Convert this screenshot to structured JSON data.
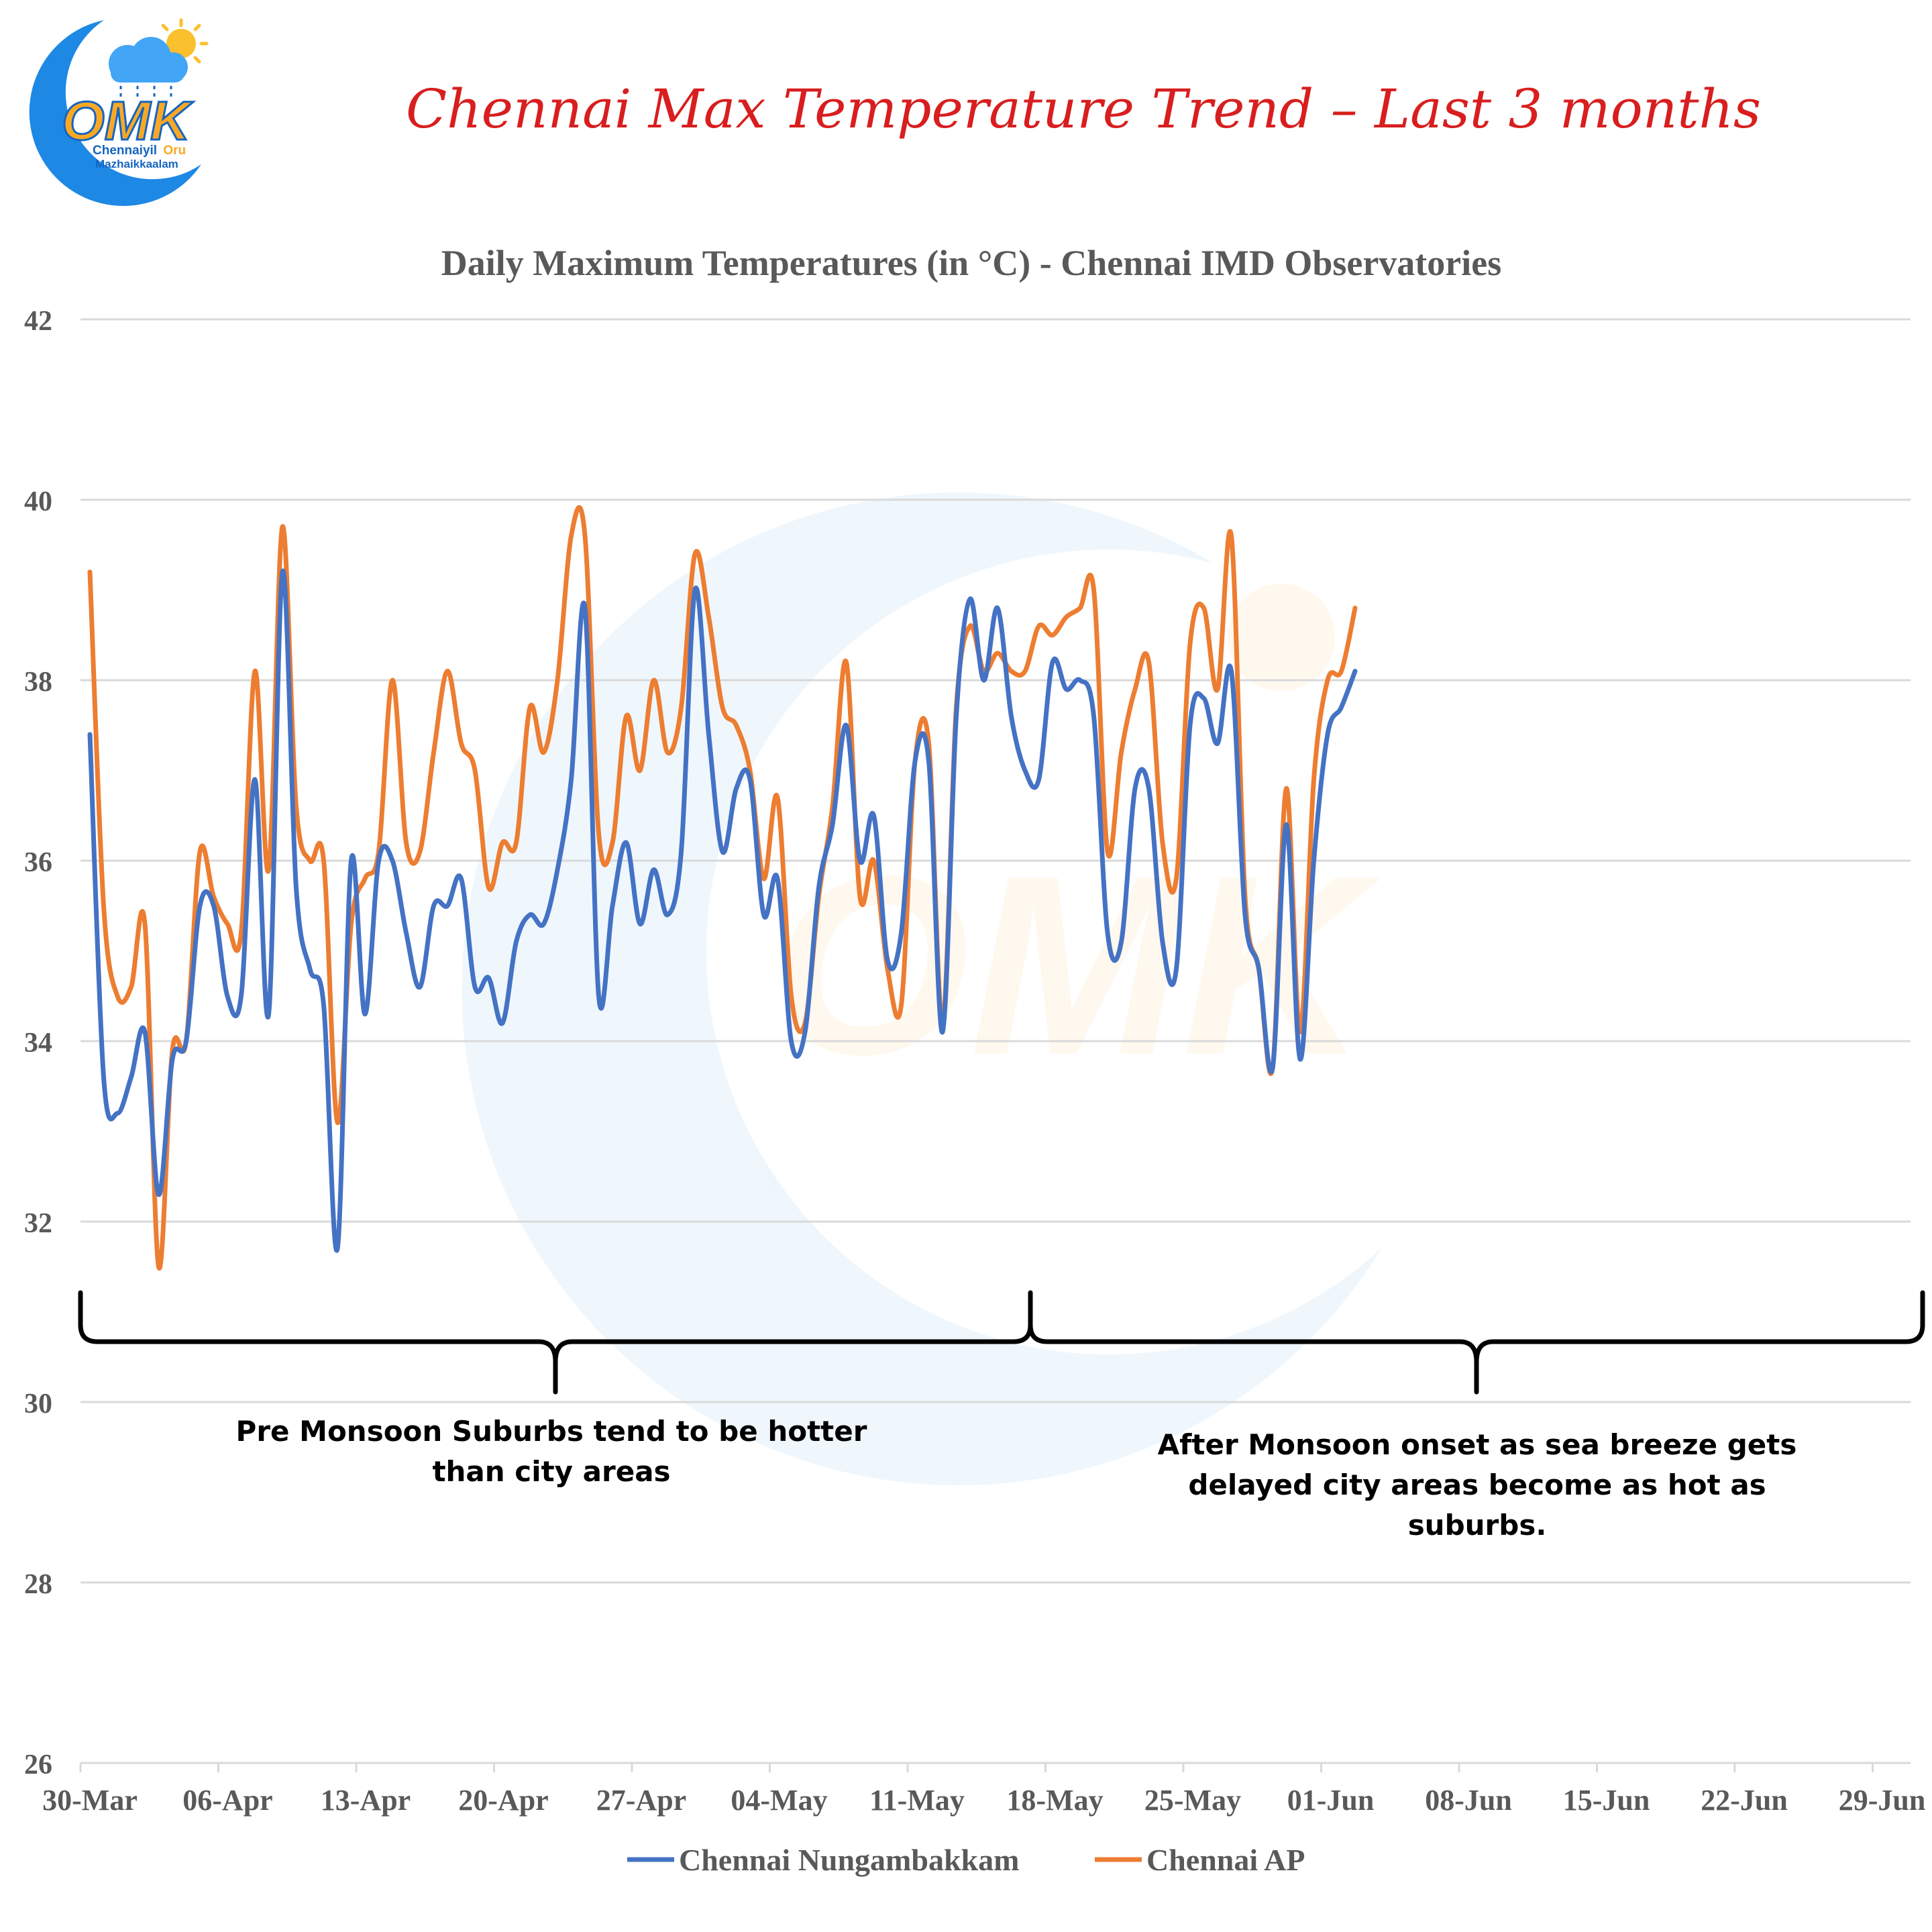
{
  "logo": {
    "mark": "OMK",
    "line1a": "Chennaiyil",
    "line1b": "Oru",
    "line2": "Mazhaikkaalam",
    "icons": [
      "crescent-icon",
      "cloud-icon",
      "sun-icon"
    ]
  },
  "banner_title": "Chennai Max Temperature Trend – Last 3 months",
  "colors": {
    "series1": "#4472C4",
    "series2": "#ED7D31",
    "banner": "#D81E1E",
    "grid": "#D9D9D9",
    "axis_text": "#595959"
  },
  "annotations": {
    "left": [
      "Pre Monsoon Suburbs tend to be hotter",
      "than city areas"
    ],
    "right": [
      "After  Monsoon onset as sea breeze gets",
      "delayed city areas become as hot as",
      "suburbs."
    ]
  },
  "chart_data": {
    "type": "line",
    "title": "Daily Maximum Temperatures (in °C) - Chennai IMD Observatories",
    "xlabel": "",
    "ylabel": "",
    "ylim": [
      26,
      42
    ],
    "y_ticks": [
      "26",
      "28",
      "30",
      "32",
      "34",
      "36",
      "38",
      "40",
      "42"
    ],
    "x_ticks": [
      "30-Mar",
      "06-Apr",
      "13-Apr",
      "20-Apr",
      "27-Apr",
      "04-May",
      "11-May",
      "18-May",
      "25-May",
      "01-Jun",
      "08-Jun",
      "15-Jun",
      "22-Jun",
      "29-Jun"
    ],
    "grid": true,
    "legend_position": "bottom",
    "series": [
      {
        "name": "Chennai Nungambakkam",
        "values": [
          37.4,
          33.6,
          33.2,
          33.6,
          34.1,
          32.3,
          33.8,
          34.0,
          35.5,
          35.5,
          34.5,
          34.5,
          36.9,
          34.3,
          39.2,
          35.7,
          34.8,
          34.4,
          31.7,
          36.0,
          34.3,
          36.0,
          36.0,
          35.2,
          34.6,
          35.5,
          35.5,
          35.8,
          34.6,
          34.7,
          34.2,
          35.1,
          35.4,
          35.3,
          35.9,
          36.9,
          38.8,
          34.5,
          35.5,
          36.2,
          35.3,
          35.9,
          35.4,
          36.1,
          39.0,
          37.4,
          36.1,
          36.8,
          36.9,
          35.4,
          35.8,
          34.0,
          34.1,
          35.7,
          36.4,
          37.5,
          36.0,
          36.5,
          34.9,
          35.2,
          37.1,
          37.1,
          34.1,
          37.6,
          38.9,
          38.0,
          38.8,
          37.6,
          37.0,
          36.9,
          38.2,
          37.9,
          38.0,
          37.6,
          35.2,
          35.1,
          36.8,
          36.8,
          35.1,
          34.8,
          37.5,
          37.8,
          37.3,
          38.1,
          35.4,
          34.8,
          33.7,
          36.4,
          33.8,
          36.0,
          37.4,
          37.7,
          38.1
        ]
      },
      {
        "name": "Chennai AP",
        "values": [
          39.2,
          35.5,
          34.5,
          34.6,
          35.3,
          31.5,
          33.9,
          34.0,
          36.1,
          35.6,
          35.3,
          35.2,
          38.1,
          35.9,
          39.7,
          36.6,
          36.0,
          36.0,
          33.1,
          35.3,
          35.8,
          36.1,
          38.0,
          36.2,
          36.1,
          37.2,
          38.1,
          37.3,
          37.0,
          35.7,
          36.2,
          36.2,
          37.7,
          37.2,
          38.0,
          39.6,
          39.6,
          36.3,
          36.2,
          37.6,
          37.0,
          38.0,
          37.2,
          37.7,
          39.4,
          38.7,
          37.7,
          37.5,
          37.0,
          35.8,
          36.7,
          34.5,
          34.2,
          35.6,
          36.6,
          38.2,
          35.6,
          36.0,
          34.8,
          34.4,
          37.1,
          37.3,
          34.2,
          37.7,
          38.6,
          38.1,
          38.3,
          38.1,
          38.1,
          38.6,
          38.5,
          38.7,
          38.8,
          39.0,
          36.1,
          37.2,
          37.9,
          38.2,
          36.2,
          35.8,
          38.4,
          38.8,
          37.9,
          39.6,
          35.6,
          34.8,
          33.7,
          36.8,
          34.1,
          36.9,
          38.0,
          38.1,
          38.8
        ]
      }
    ]
  }
}
